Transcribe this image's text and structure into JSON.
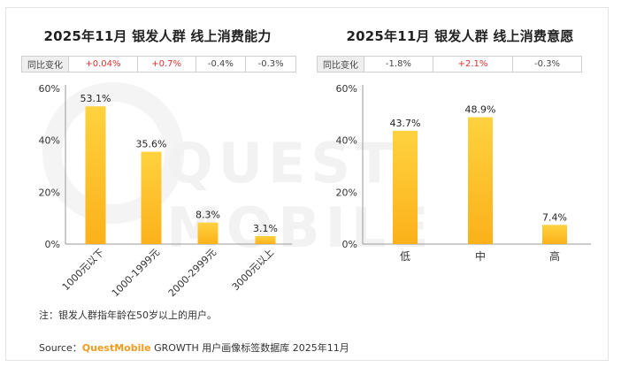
{
  "chart_data": [
    {
      "type": "bar",
      "title": "2025年11月 银发人群 线上消费能力",
      "categories": [
        "1000元以下",
        "1000-1999元",
        "2000-2999元",
        "3000元以上"
      ],
      "values": [
        53.1,
        35.6,
        8.3,
        3.1
      ],
      "value_labels": [
        "53.1%",
        "35.6%",
        "8.3%",
        "3.1%"
      ],
      "ylim": [
        0,
        60
      ],
      "yticks": [
        "0%",
        "20%",
        "40%",
        "60%"
      ],
      "yoy_label": "同比变化",
      "yoy": [
        "+0.04%",
        "+0.7%",
        "-0.4%",
        "-0.3%"
      ],
      "category_label_rotation": "rotated"
    },
    {
      "type": "bar",
      "title": "2025年11月 银发人群 线上消费意愿",
      "categories": [
        "低",
        "中",
        "高"
      ],
      "values": [
        43.7,
        48.9,
        7.4
      ],
      "value_labels": [
        "43.7%",
        "48.9%",
        "7.4%"
      ],
      "ylim": [
        0,
        60
      ],
      "yticks": [
        "0%",
        "20%",
        "40%",
        "60%"
      ],
      "yoy_label": "同比变化",
      "yoy": [
        "-1.8%",
        "+2.1%",
        "-0.3%"
      ],
      "category_label_rotation": "horizontal"
    }
  ],
  "colors": {
    "bar_top": "#ffd23f",
    "bar_bottom": "#fbb11a",
    "positive": "#e0312f",
    "negative": "#444444",
    "brand": "#f29b1d"
  },
  "footer": {
    "note": "注：银发人群指年龄在50岁以上的用户。",
    "source_prefix": "Source：",
    "source_brand": "QuestMobile",
    "source_rest": " GROWTH 用户画像标签数据库 2025年11月"
  },
  "watermark": "QUEST MOBILE"
}
